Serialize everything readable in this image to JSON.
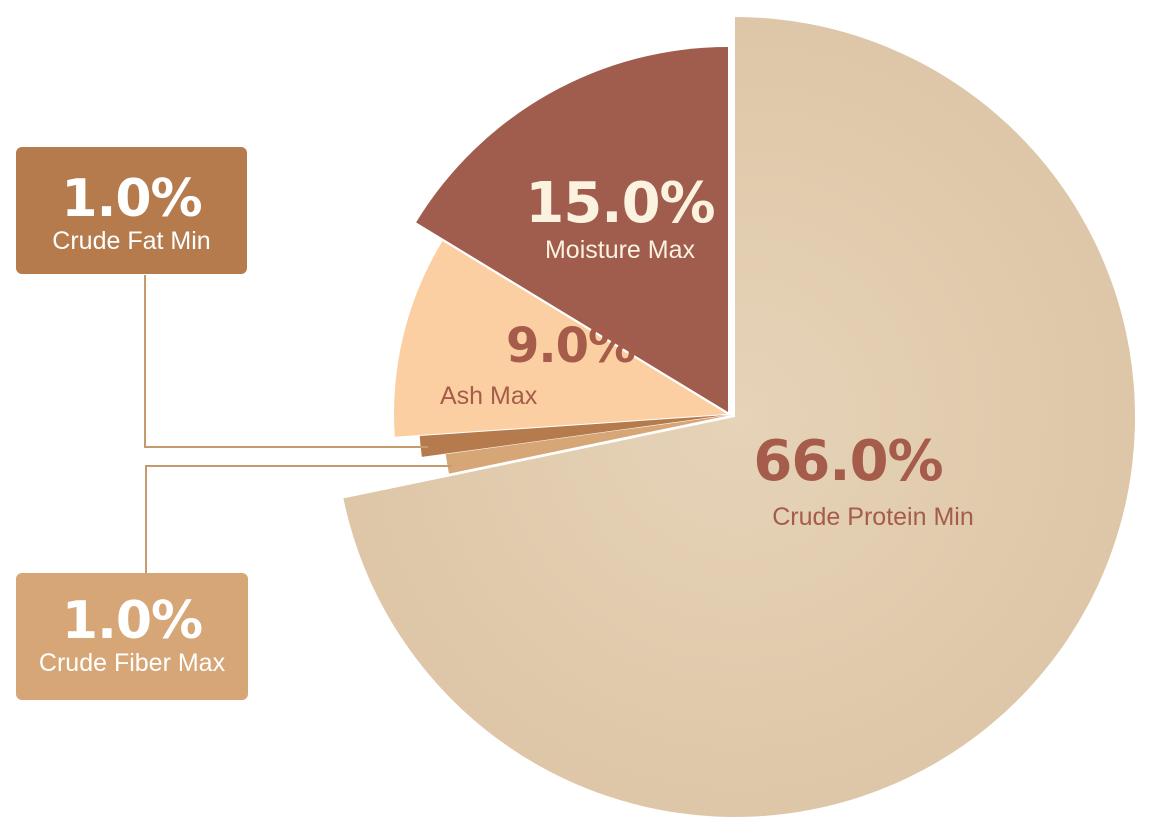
{
  "chart_data": {
    "type": "pie",
    "unit": "%",
    "slices": [
      {
        "label": "Crude Protein Min",
        "value": 66.0,
        "value_label": "66.0%",
        "color": "#dfc8a9",
        "text_color": "#a55c4a"
      },
      {
        "label": "Crude Fiber Max",
        "value": 1.0,
        "value_label": "1.0%",
        "color": "#d6a676",
        "text_color": "#ffffff"
      },
      {
        "label": "Crude Fat Min",
        "value": 1.0,
        "value_label": "1.0%",
        "color": "#b57b4d",
        "text_color": "#ffffff"
      },
      {
        "label": "Ash Max",
        "value": 9.0,
        "value_label": "9.0%",
        "color": "#fbcfa2",
        "text_color": "#a55c4a"
      },
      {
        "label": "Moisture Max",
        "value": 15.0,
        "value_label": "15.0%",
        "color": "#a05c4c",
        "text_color": "#fbf2df"
      }
    ],
    "title": "",
    "legend": "none",
    "exploded": true
  },
  "callouts": {
    "fat": {
      "value_label": "1.0%",
      "label": "Crude Fat Min",
      "color": "#b57b4d"
    },
    "fiber": {
      "value_label": "1.0%",
      "label": "Crude Fiber Max",
      "color": "#d6a676"
    },
    "leader_color": "#c79a6e"
  }
}
